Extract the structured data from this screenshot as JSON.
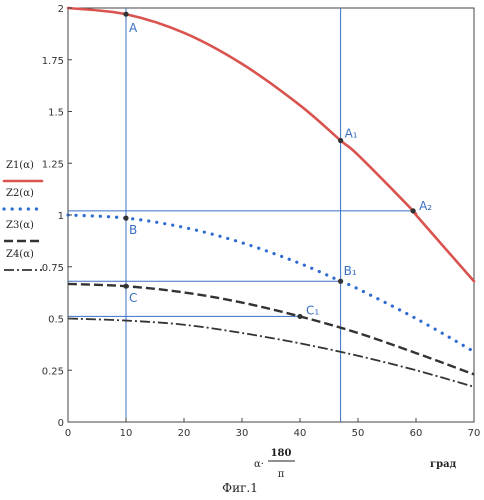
{
  "chart_data": {
    "type": "line",
    "xlim": [
      0,
      70
    ],
    "ylim": [
      0,
      2
    ],
    "x_ticks": [
      "0",
      "10",
      "20",
      "30",
      "40",
      "50",
      "60",
      "70"
    ],
    "y_ticks": [
      "0",
      "0.25",
      "0.5",
      "0.75",
      "1",
      "1.25",
      "1.5",
      "1.75",
      "2"
    ],
    "xlabel": {
      "prefix": "α·",
      "numerator": "180",
      "denominator": "π",
      "unit": "град"
    },
    "grid": false,
    "legend_position": "left",
    "series": [
      {
        "name": "Z1(α)",
        "style": "solid",
        "color": "#d9534f",
        "x": [
          0,
          10,
          20,
          30,
          40,
          47,
          50,
          59.5,
          60,
          70
        ],
        "y": [
          2.0,
          1.97,
          1.88,
          1.73,
          1.53,
          1.36,
          1.29,
          1.02,
          1.0,
          0.68
        ]
      },
      {
        "name": "Z2(α)",
        "style": "dotted",
        "color": "#2f6bd1",
        "x": [
          0,
          10,
          20,
          30,
          40,
          47,
          50,
          60,
          70
        ],
        "y": [
          1.0,
          0.985,
          0.94,
          0.866,
          0.766,
          0.68,
          0.643,
          0.5,
          0.34
        ]
      },
      {
        "name": "Z3(α)",
        "style": "dashed",
        "color": "#333333",
        "x": [
          0,
          10,
          20,
          30,
          40,
          50,
          60,
          70
        ],
        "y": [
          0.667,
          0.656,
          0.626,
          0.577,
          0.51,
          0.43,
          0.333,
          0.23
        ]
      },
      {
        "name": "Z4(α)",
        "style": "dash-dot",
        "color": "#333333",
        "x": [
          0,
          10,
          20,
          30,
          40,
          50,
          60,
          70
        ],
        "y": [
          0.5,
          0.49,
          0.47,
          0.43,
          0.38,
          0.32,
          0.25,
          0.17
        ]
      }
    ],
    "guides": {
      "vertical_x": [
        10,
        47
      ],
      "horizontal": [
        {
          "y": 1.02,
          "x_to": 59.5
        },
        {
          "y": 0.68,
          "x_to": 47
        },
        {
          "y": 0.51,
          "x_to": 40
        }
      ]
    },
    "points": [
      {
        "label": "A",
        "x": 10,
        "y": 1.97
      },
      {
        "label": "A₁",
        "x": 47,
        "y": 1.36
      },
      {
        "label": "A₂",
        "x": 59.5,
        "y": 1.02
      },
      {
        "label": "B",
        "x": 10,
        "y": 0.985
      },
      {
        "label": "B₁",
        "x": 47,
        "y": 0.68
      },
      {
        "label": "C",
        "x": 10,
        "y": 0.656
      },
      {
        "label": "C₁",
        "x": 40,
        "y": 0.51
      }
    ]
  },
  "caption": "Фиг.1"
}
